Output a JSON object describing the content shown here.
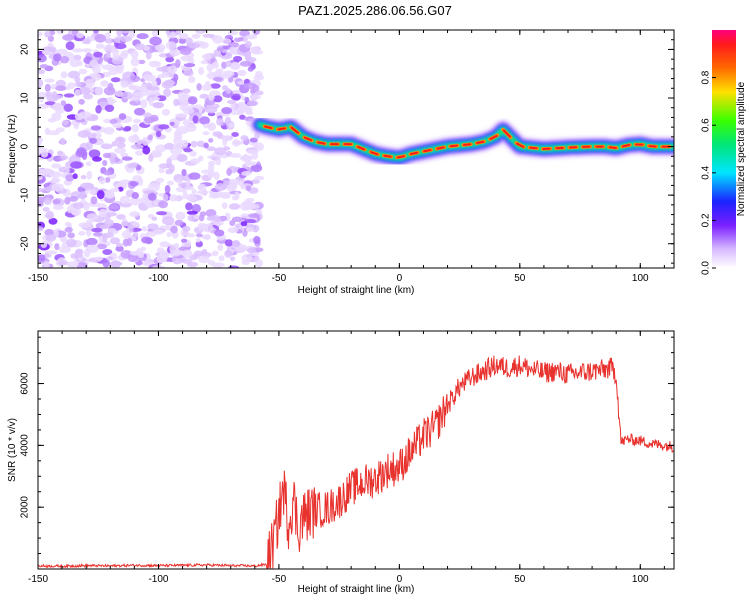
{
  "title": "PAZ1.2025.286.06.56.G07",
  "chart_data": [
    {
      "type": "heatmap",
      "name": "spectrogram",
      "xlabel": "Height of straight line (km)",
      "ylabel": "Frequency (Hz)",
      "xlim": [
        -150,
        114
      ],
      "ylim": [
        -25,
        24
      ],
      "xticks": [
        -150,
        -100,
        -50,
        0,
        50,
        100
      ],
      "xtick_labels": [
        "-150",
        "-100",
        "-50",
        "0",
        "50",
        "100"
      ],
      "yticks": [
        -20,
        -10,
        0,
        10,
        20
      ],
      "ytick_labels": [
        "-20",
        "-10",
        "0",
        "10",
        "20"
      ],
      "noise_region_km": [
        -150,
        -58
      ],
      "ridge_points": {
        "x": [
          -58,
          -55,
          -50,
          -45,
          -40,
          -35,
          -30,
          -20,
          -15,
          -10,
          -5,
          0,
          5,
          10,
          20,
          30,
          35,
          40,
          43,
          46,
          50,
          60,
          70,
          80,
          85,
          90,
          95,
          100,
          105,
          114
        ],
        "y": [
          4.5,
          4,
          3.5,
          4,
          2,
          1,
          0.5,
          0.5,
          -0.5,
          -1.5,
          -2,
          -2.3,
          -1.5,
          -1,
          0,
          0.5,
          1,
          2,
          3.5,
          2,
          0,
          -0.5,
          -0.2,
          0,
          0,
          -0.3,
          0.3,
          0.5,
          0,
          0
        ]
      },
      "colorbar": {
        "label": "Normalized spectral amplitude",
        "range": [
          0,
          1
        ],
        "ticks": [
          0.0,
          0.2,
          0.4,
          0.6,
          0.8
        ],
        "tick_labels": [
          "0.0",
          "0.2",
          "0.4",
          "0.6",
          "0.8"
        ]
      }
    },
    {
      "type": "line",
      "name": "snr",
      "xlabel": "Height of straight line (km)",
      "ylabel": "SNR (10 * v/v)",
      "xlim": [
        -150,
        114
      ],
      "ylim": [
        0,
        7700
      ],
      "xticks": [
        -150,
        -100,
        -50,
        0,
        50,
        100
      ],
      "xtick_labels": [
        "-150",
        "-100",
        "-50",
        "0",
        "50",
        "100"
      ],
      "yticks": [
        2000,
        4000,
        6000
      ],
      "ytick_labels": [
        "2000",
        "4000",
        "6000"
      ],
      "color": "#e8322e",
      "series": [
        {
          "name": "SNR",
          "x": [
            -150,
            -140,
            -130,
            -120,
            -110,
            -100,
            -90,
            -80,
            -70,
            -60,
            -55,
            -52,
            -50,
            -48,
            -46,
            -44,
            -42,
            -40,
            -35,
            -30,
            -25,
            -20,
            -15,
            -10,
            -5,
            0,
            5,
            10,
            15,
            20,
            25,
            30,
            35,
            40,
            45,
            50,
            55,
            60,
            65,
            70,
            75,
            80,
            85,
            88,
            90,
            92,
            95,
            100,
            105,
            110,
            114
          ],
          "y": [
            100,
            90,
            110,
            100,
            120,
            110,
            120,
            130,
            110,
            100,
            150,
            900,
            1800,
            2600,
            1500,
            2300,
            1300,
            1700,
            1900,
            1950,
            2200,
            2600,
            2800,
            2900,
            3200,
            3300,
            3800,
            4300,
            4600,
            5300,
            5900,
            6200,
            6400,
            6600,
            6500,
            6600,
            6450,
            6350,
            6400,
            6300,
            6350,
            6400,
            6450,
            6500,
            6300,
            4100,
            4200,
            4150,
            4050,
            4000,
            3950
          ]
        }
      ]
    }
  ]
}
